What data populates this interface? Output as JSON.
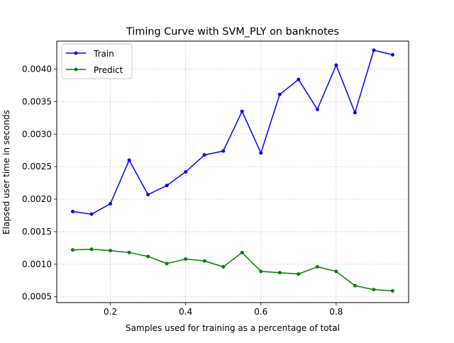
{
  "chart_data": {
    "type": "line",
    "title": "Timing Curve with SVM_PLY on banknotes",
    "xlabel": "Samples used for training as a percentage of total",
    "ylabel": "Elapsed user time in seconds",
    "xlim": [
      0.0575,
      0.9925
    ],
    "ylim": [
      0.00041,
      0.00443
    ],
    "xticks": [
      0.2,
      0.4,
      0.6,
      0.8
    ],
    "xtick_labels": [
      "0.2",
      "0.4",
      "0.6",
      "0.8"
    ],
    "yticks": [
      0.0005,
      0.001,
      0.0015,
      0.002,
      0.0025,
      0.003,
      0.0035,
      0.004
    ],
    "ytick_labels": [
      "0.0005",
      "0.0010",
      "0.0015",
      "0.0020",
      "0.0025",
      "0.0030",
      "0.0035",
      "0.0040"
    ],
    "grid": true,
    "legend_position": "top-left",
    "x": [
      0.1,
      0.15,
      0.2,
      0.25,
      0.3,
      0.35,
      0.4,
      0.45,
      0.5,
      0.55,
      0.6,
      0.65,
      0.7,
      0.75,
      0.8,
      0.85,
      0.9,
      0.95
    ],
    "series": [
      {
        "name": "Train",
        "color": "#0000ff",
        "marker": "dot",
        "values": [
          0.00181,
          0.00177,
          0.00193,
          0.0026,
          0.00207,
          0.00221,
          0.00242,
          0.00268,
          0.00274,
          0.00335,
          0.00271,
          0.00361,
          0.00384,
          0.00338,
          0.00406,
          0.00333,
          0.00429,
          0.00422
        ]
      },
      {
        "name": "Predict",
        "color": "#008000",
        "marker": "dot",
        "values": [
          0.00122,
          0.00123,
          0.00121,
          0.00118,
          0.00112,
          0.00101,
          0.00108,
          0.00105,
          0.00096,
          0.00118,
          0.00089,
          0.00087,
          0.00085,
          0.00096,
          0.00089,
          0.00067,
          0.00061,
          0.00059
        ]
      }
    ]
  }
}
